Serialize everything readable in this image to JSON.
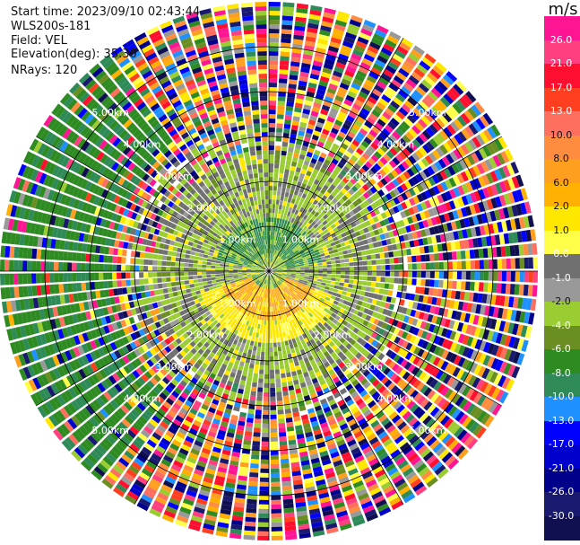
{
  "header": {
    "start_time": "Start time: 2023/09/10 02:43:44",
    "instrument": "WLS200s-181",
    "field": "Field: VEL",
    "elevation": "Elevation(deg): 35.30",
    "nrays": "NRays: 120"
  },
  "chart_data": {
    "type": "heatmap",
    "projection": "polar-ppi",
    "title": "",
    "field": "VEL",
    "units": "m/s",
    "n_rays": 120,
    "max_range_km": 6.0,
    "range_rings_km": [
      1,
      2,
      3,
      4,
      5
    ],
    "range_ring_labels": [
      "1.00km",
      "2.00km",
      "3.00km",
      "4.00km",
      "5.00km"
    ],
    "colorbar": {
      "title": "m/s",
      "tick_labels": [
        "26.0",
        "21.0",
        "17.0",
        "13.0",
        "10.0",
        "8.0",
        "6.0",
        "2.0",
        "1.0",
        "0.0",
        "-1.0",
        "-2.0",
        "-4.0",
        "-6.0",
        "-8.0",
        "-10.0",
        "-13.0",
        "-17.0",
        "-21.0",
        "-26.0",
        "-30.0"
      ],
      "colors": [
        "#ff1493",
        "#ff3f7f",
        "#ff0f2f",
        "#ff3f1f",
        "#ff6f5f",
        "#ff8c3f",
        "#ff9f1f",
        "#ffb000",
        "#ffe700",
        "#ffff4a",
        "#707070",
        "#999999",
        "#9acd32",
        "#6b8e23",
        "#2e8b22",
        "#2e8b57",
        "#1e90ff",
        "#0000ff",
        "#0000cd",
        "#00008b",
        "#191970",
        "#101050"
      ]
    },
    "velocity_pattern": {
      "description": "Near-radar weak flow (green/gray) with a small positive core to the south; outer ranges dominated by noise speckle; westward sector predominantly green (negative).",
      "regions": [
        {
          "range_km": [
            0,
            1.0
          ],
          "dominant": "-2.0 to 2.0"
        },
        {
          "range_km": [
            1.0,
            2.5
          ],
          "dominant": "-2.0 to 1.0"
        },
        {
          "range_km": [
            2.5,
            6.0
          ],
          "dominant": "noise (-30.0 to 26.0)"
        }
      ]
    }
  }
}
